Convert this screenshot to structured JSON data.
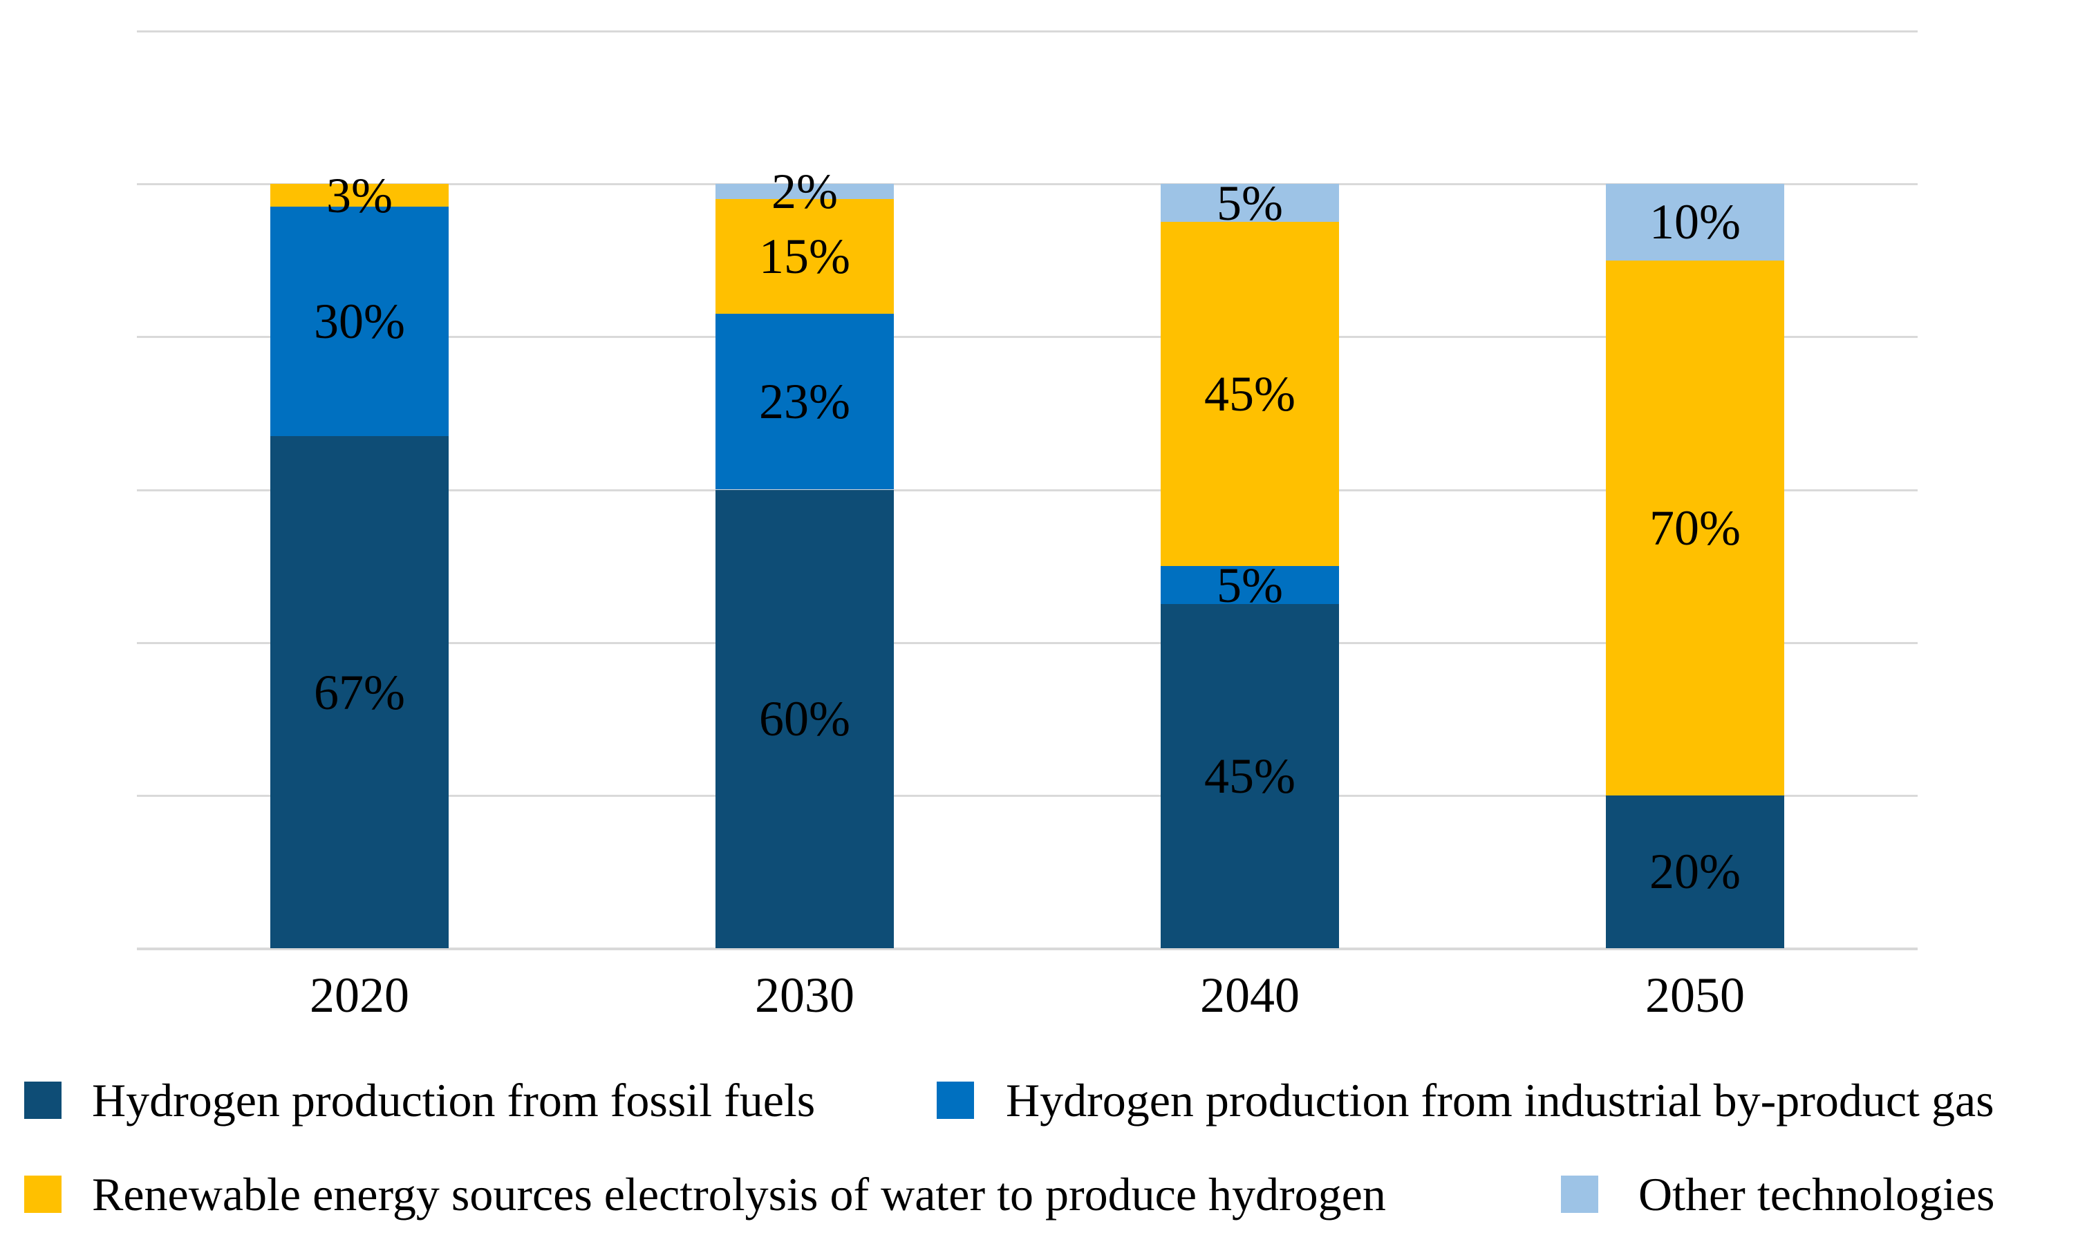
{
  "chart_data": {
    "type": "bar",
    "stacked": true,
    "unit": "%",
    "title": "",
    "xlabel": "",
    "ylabel": "",
    "categories": [
      "2020",
      "2030",
      "2040",
      "2050"
    ],
    "series": [
      {
        "name": "Hydrogen production from fossil fuels",
        "color": "#0E4D76",
        "values": [
          67,
          60,
          45,
          20
        ],
        "labels": [
          "67%",
          "60%",
          "45%",
          "20%"
        ]
      },
      {
        "name": "Hydrogen production from industrial by-product gas",
        "color": "#0070C0",
        "values": [
          30,
          23,
          5,
          0
        ],
        "labels": [
          "30%",
          "23%",
          "5%",
          ""
        ]
      },
      {
        "name": "Renewable energy sources electrolysis of water to produce hydrogen",
        "color": "#FFC000",
        "values": [
          3,
          15,
          45,
          70
        ],
        "labels": [
          "3%",
          "15%",
          "45%",
          "70%"
        ]
      },
      {
        "name": "Other technologies",
        "color": "#9DC3E6",
        "values": [
          0,
          2,
          5,
          10
        ],
        "labels": [
          "",
          "2%",
          "5%",
          "10%"
        ]
      }
    ],
    "ylim": [
      0,
      120
    ],
    "gridline_step": 20,
    "grid": true,
    "gridline_color": "#D9D9D9",
    "label_color": "#000000",
    "legend_position": "bottom"
  }
}
